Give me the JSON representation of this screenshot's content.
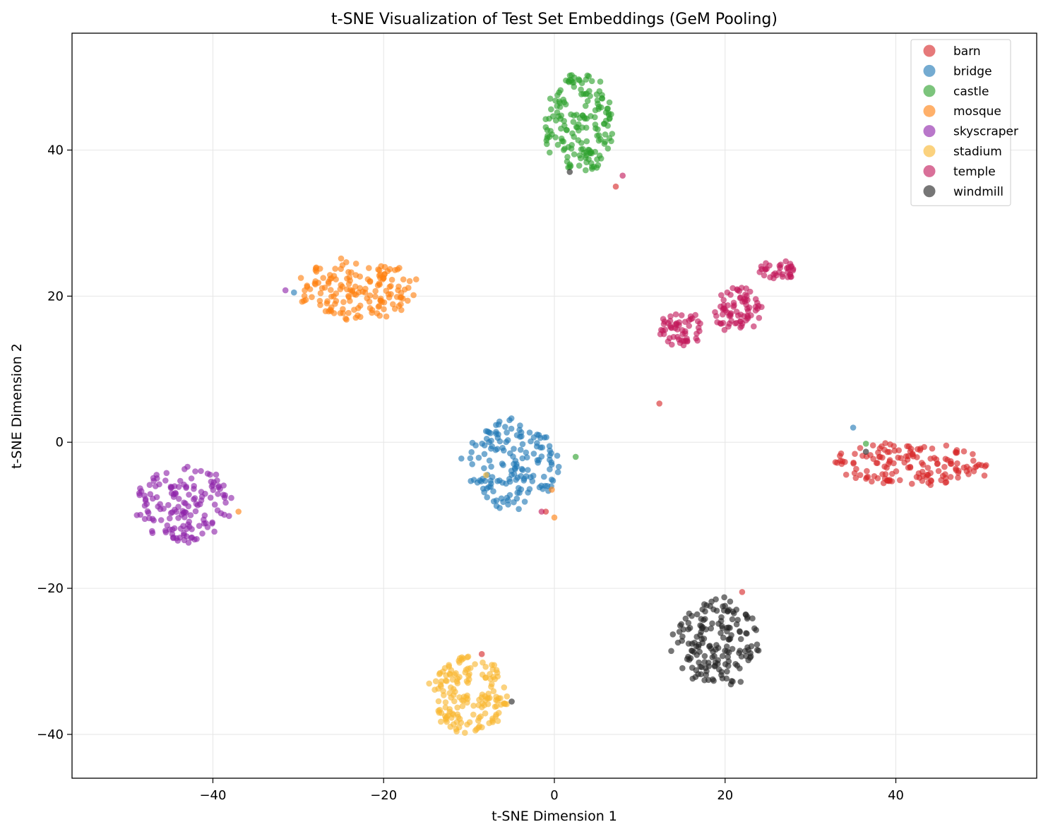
{
  "chart_data": {
    "type": "scatter",
    "title": "t-SNE Visualization of Test Set Embeddings (GeM Pooling)",
    "xlabel": "t-SNE Dimension 1",
    "ylabel": "t-SNE Dimension 2",
    "xlim": [
      -56.5,
      56.5
    ],
    "ylim": [
      -46,
      56
    ],
    "xticks": [
      -40,
      -20,
      0,
      20,
      40
    ],
    "yticks": [
      -40,
      -20,
      0,
      20,
      40
    ],
    "xtick_labels": [
      "−40",
      "−20",
      "0",
      "20",
      "40"
    ],
    "ytick_labels": [
      "−40",
      "−20",
      "0",
      "20",
      "40"
    ],
    "grid": true,
    "legend_position": "top-right",
    "series": [
      {
        "name": "barn",
        "color": "#d62728",
        "cluster": {
          "cx": 41.5,
          "cy": -3.0,
          "rx": 10.5,
          "ry": 3.2,
          "n": 150
        },
        "points": [
          [
            22.0,
            -20.5
          ],
          [
            -1.0,
            -9.5
          ],
          [
            -8.5,
            -29.0
          ],
          [
            12.3,
            5.3
          ],
          [
            7.2,
            35.0
          ]
        ]
      },
      {
        "name": "bridge",
        "color": "#1f77b4",
        "cluster": {
          "cx": -5.0,
          "cy": -3.0,
          "rx": 6.0,
          "ry": 6.5,
          "n": 160
        },
        "points": [
          [
            35.0,
            2.0
          ],
          [
            -30.5,
            20.5
          ]
        ]
      },
      {
        "name": "castle",
        "color": "#2ca02c",
        "cluster": {
          "cx": 3.0,
          "cy": 43.5,
          "rx": 4.5,
          "ry": 7.5,
          "n": 170
        },
        "points": [
          [
            2.5,
            -2.0
          ],
          [
            36.5,
            -0.2
          ]
        ]
      },
      {
        "name": "mosque",
        "color": "#ff7f0e",
        "cluster": {
          "cx": -23.0,
          "cy": 21.0,
          "rx": 7.5,
          "ry": 4.5,
          "n": 160
        },
        "points": [
          [
            -0.3,
            -6.5
          ],
          [
            -37.0,
            -9.5
          ],
          [
            0.0,
            -10.3
          ]
        ]
      },
      {
        "name": "skyscraper",
        "color": "#8e24aa",
        "cluster": {
          "cx": -43.5,
          "cy": -8.5,
          "rx": 6.0,
          "ry": 5.5,
          "n": 150
        },
        "points": [
          [
            -31.5,
            20.8
          ]
        ]
      },
      {
        "name": "stadium",
        "color": "#f9b72f",
        "cluster": {
          "cx": -10.0,
          "cy": -34.5,
          "rx": 5.0,
          "ry": 5.5,
          "n": 160
        },
        "points": [
          [
            -8.0,
            -4.5
          ]
        ]
      },
      {
        "name": "temple",
        "color": "#c2185b",
        "cluster_segments": [
          {
            "cx": 15.0,
            "cy": 15.5,
            "rx": 3.0,
            "ry": 2.5,
            "n": 55
          },
          {
            "cx": 21.5,
            "cy": 18.0,
            "rx": 3.0,
            "ry": 3.5,
            "n": 75
          },
          {
            "cx": 26.0,
            "cy": 23.5,
            "rx": 2.5,
            "ry": 1.5,
            "n": 35
          }
        ],
        "points": [
          [
            -1.5,
            -9.5
          ],
          [
            8.0,
            36.5
          ]
        ]
      },
      {
        "name": "windmill",
        "color": "#222222",
        "cluster": {
          "cx": 19.0,
          "cy": -27.5,
          "rx": 5.5,
          "ry": 6.5,
          "n": 170
        },
        "points": [
          [
            1.8,
            37.0
          ],
          [
            -5.0,
            -35.5
          ],
          [
            36.5,
            -1.3
          ]
        ]
      }
    ]
  }
}
